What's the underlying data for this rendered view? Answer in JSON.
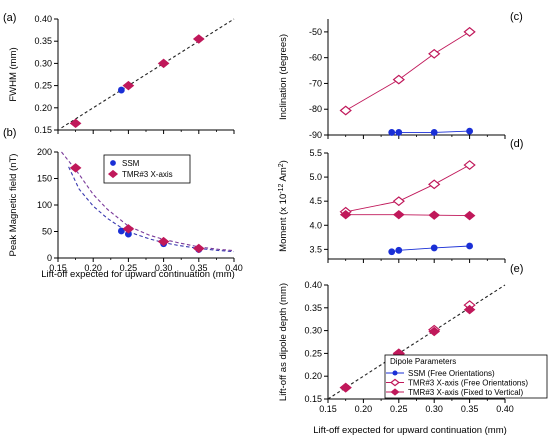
{
  "colors": {
    "ssm": "#1a2fd6",
    "tmr": "#c0185a",
    "fit": "#222222",
    "ssm_fit": "#3a3ab0",
    "tmr_fit": "#7a3a9a"
  },
  "xlabel": "Lift-off expected for upward continuation (mm)",
  "chart_data": [
    {
      "panel": "(a)",
      "type": "scatter",
      "ylabel": "FWHM (mm)",
      "xlim": [
        0.15,
        0.4
      ],
      "ylim": [
        0.15,
        0.4
      ],
      "xticks": [
        "0.15",
        "0.20",
        "0.25",
        "0.30",
        "0.35",
        "0.40"
      ],
      "show_xtick_labels": false,
      "yticks": [
        "0.15",
        "0.20",
        "0.25",
        "0.30",
        "0.35",
        "0.40"
      ],
      "reference_line": {
        "x": [
          0.155,
          0.4
        ],
        "y": [
          0.155,
          0.4
        ]
      },
      "series": [
        {
          "marker": "dot",
          "color": "ssm",
          "points": [
            [
              0.24,
              0.24
            ],
            [
              0.25,
              0.25
            ],
            [
              0.3,
              0.3
            ],
            [
              0.35,
              0.355
            ]
          ]
        },
        {
          "marker": "diamond",
          "color": "tmr",
          "points": [
            [
              0.175,
              0.165
            ],
            [
              0.25,
              0.25
            ],
            [
              0.3,
              0.3
            ],
            [
              0.35,
              0.355
            ]
          ]
        }
      ]
    },
    {
      "panel": "(b)",
      "type": "scatter",
      "ylabel": "Peak Magnetic field (nT)",
      "xlim": [
        0.15,
        0.4
      ],
      "ylim": [
        0,
        200
      ],
      "xticks": [
        "0.15",
        "0.20",
        "0.25",
        "0.30",
        "0.35",
        "0.40"
      ],
      "show_xtick_labels": true,
      "yticks": [
        "0",
        "50",
        "100",
        "150",
        "200"
      ],
      "legend": [
        {
          "label": "SSM",
          "marker": "dot",
          "color": "ssm"
        },
        {
          "label": "TMR#3 X-axis",
          "marker": "diamond",
          "color": "tmr"
        }
      ],
      "legend_position": "top-right",
      "fit_curves": [
        {
          "color": "ssm_fit",
          "x": [
            0.165,
            0.18,
            0.2,
            0.22,
            0.24,
            0.26,
            0.28,
            0.3,
            0.32,
            0.35,
            0.38,
            0.4
          ],
          "y": [
            172,
            130,
            98,
            75,
            57,
            45,
            36,
            29,
            24,
            18,
            14,
            12
          ]
        },
        {
          "color": "tmr_fit",
          "x": [
            0.155,
            0.17,
            0.18,
            0.2,
            0.22,
            0.25,
            0.28,
            0.3,
            0.32,
            0.35,
            0.38,
            0.4
          ],
          "y": [
            200,
            175,
            158,
            120,
            92,
            60,
            43,
            35,
            29,
            21,
            16,
            14
          ]
        }
      ],
      "series": [
        {
          "name": "SSM",
          "marker": "dot",
          "color": "ssm",
          "points": [
            [
              0.24,
              51
            ],
            [
              0.25,
              45
            ],
            [
              0.3,
              27
            ],
            [
              0.35,
              16
            ]
          ]
        },
        {
          "name": "TMR#3 X-axis",
          "marker": "diamond",
          "color": "tmr",
          "points": [
            [
              0.175,
              170
            ],
            [
              0.25,
              55
            ],
            [
              0.3,
              31
            ],
            [
              0.35,
              18
            ]
          ]
        }
      ]
    },
    {
      "panel": "(c)",
      "type": "line",
      "ylabel": "Inclination (degrees)",
      "xlim": [
        0.15,
        0.4
      ],
      "ylim": [
        -90,
        -45
      ],
      "xticks": [
        "0.15",
        "0.20",
        "0.25",
        "0.30",
        "0.35",
        "0.40"
      ],
      "show_xtick_labels": false,
      "yticks": [
        "-90",
        "-80",
        "-70",
        "-60",
        "-50"
      ],
      "series": [
        {
          "marker": "diamond-open",
          "color": "tmr",
          "points": [
            [
              0.175,
              -80.5
            ],
            [
              0.25,
              -68.5
            ],
            [
              0.3,
              -58.5
            ],
            [
              0.35,
              -50
            ]
          ]
        },
        {
          "marker": "dot",
          "color": "ssm",
          "points": [
            [
              0.24,
              -89
            ],
            [
              0.25,
              -89
            ],
            [
              0.3,
              -89
            ],
            [
              0.35,
              -88.5
            ]
          ]
        }
      ]
    },
    {
      "panel": "(d)",
      "type": "line",
      "ylabel": "Moment (x 10",
      "ylabel_sup1": "-12",
      "ylabel_mid": " Am",
      "ylabel_sup2": "2",
      "ylabel_end": ")",
      "xlim": [
        0.15,
        0.4
      ],
      "ylim": [
        3.3,
        5.5
      ],
      "xticks": [
        "0.15",
        "0.20",
        "0.25",
        "0.30",
        "0.35",
        "0.40"
      ],
      "show_xtick_labels": false,
      "yticks": [
        "3.5",
        "4.0",
        "4.5",
        "5.0",
        "5.5"
      ],
      "series": [
        {
          "marker": "diamond-open",
          "color": "tmr",
          "points": [
            [
              0.175,
              4.28
            ],
            [
              0.25,
              4.5
            ],
            [
              0.3,
              4.85
            ],
            [
              0.35,
              5.25
            ]
          ]
        },
        {
          "marker": "diamond",
          "color": "tmr",
          "points": [
            [
              0.175,
              4.22
            ],
            [
              0.25,
              4.22
            ],
            [
              0.3,
              4.21
            ],
            [
              0.35,
              4.2
            ]
          ]
        },
        {
          "marker": "dot",
          "color": "ssm",
          "points": [
            [
              0.24,
              3.45
            ],
            [
              0.25,
              3.48
            ],
            [
              0.3,
              3.53
            ],
            [
              0.35,
              3.57
            ]
          ]
        }
      ]
    },
    {
      "panel": "(e)",
      "type": "scatter",
      "ylabel": "Lift-off as dipole depth (mm)",
      "xlim": [
        0.15,
        0.4
      ],
      "ylim": [
        0.15,
        0.4
      ],
      "xticks": [
        "0.15",
        "0.20",
        "0.25",
        "0.30",
        "0.35",
        "0.40"
      ],
      "show_xtick_labels": true,
      "yticks": [
        "0.15",
        "0.20",
        "0.25",
        "0.30",
        "0.35",
        "0.40"
      ],
      "reference_line": {
        "x": [
          0.15,
          0.4
        ],
        "y": [
          0.15,
          0.4
        ]
      },
      "legend_title": "Dipole Parameters",
      "legend": [
        {
          "label": "SSM (Free Orientations)",
          "marker": "dot",
          "color": "ssm"
        },
        {
          "label": "TMR#3 X-axis (Free Orientations)",
          "marker": "diamond-open",
          "color": "tmr"
        },
        {
          "label": "TMR#3 X-axis (Fixed to Vertical)",
          "marker": "diamond",
          "color": "tmr"
        }
      ],
      "legend_position": "bottom-right",
      "series": [
        {
          "name": "SSM (Free Orientations)",
          "marker": "dot",
          "color": "ssm",
          "points": [
            [
              0.24,
              0.238
            ],
            [
              0.25,
              0.248
            ],
            [
              0.3,
              0.298
            ],
            [
              0.35,
              0.35
            ]
          ]
        },
        {
          "name": "TMR#3 X-axis (Free Orientations)",
          "marker": "diamond-open",
          "color": "tmr",
          "points": [
            [
              0.175,
              0.175
            ],
            [
              0.25,
              0.25
            ],
            [
              0.3,
              0.302
            ],
            [
              0.35,
              0.356
            ]
          ]
        },
        {
          "name": "TMR#3 X-axis (Fixed to Vertical)",
          "marker": "diamond",
          "color": "tmr",
          "points": [
            [
              0.175,
              0.175
            ],
            [
              0.25,
              0.248
            ],
            [
              0.3,
              0.298
            ],
            [
              0.35,
              0.346
            ]
          ]
        }
      ]
    }
  ]
}
